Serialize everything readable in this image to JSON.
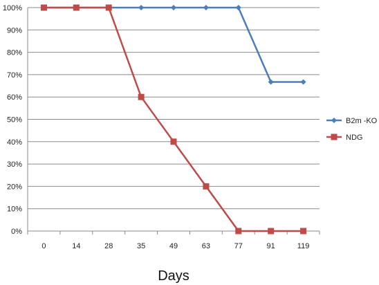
{
  "chart_data": {
    "type": "line",
    "categories": [
      "0",
      "14",
      "28",
      "35",
      "49",
      "63",
      "77",
      "91",
      "119"
    ],
    "series": [
      {
        "name": "B2m -KO",
        "color": "#4A7EBB",
        "marker": "diamond",
        "values": [
          100,
          100,
          100,
          100,
          100,
          100,
          100,
          66.7,
          66.7
        ]
      },
      {
        "name": "NDG",
        "color": "#BE4B48",
        "marker": "square",
        "values": [
          100,
          100,
          100,
          60,
          40,
          20,
          0,
          0,
          0
        ]
      }
    ],
    "xlabel": "Days",
    "ylabel": "",
    "ylim": [
      0,
      100
    ],
    "ytick_step": 10,
    "ytick_format": "percent",
    "grid": true,
    "legend_position": "right"
  }
}
